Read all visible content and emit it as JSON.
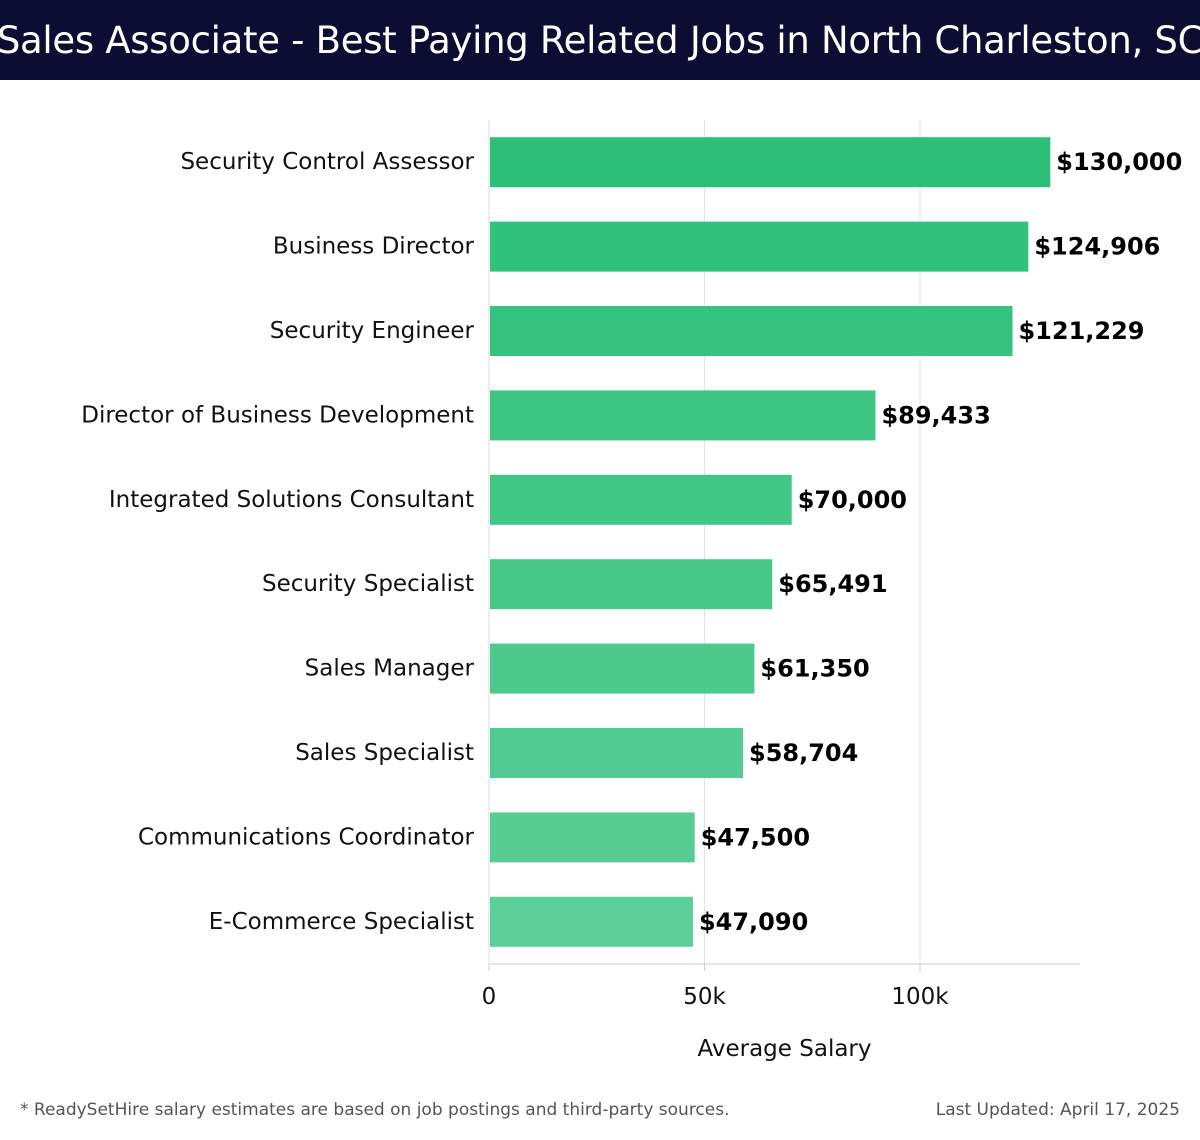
{
  "header": {
    "title": "Sales Associate - Best Paying Related Jobs in North Charleston, SC"
  },
  "footer": {
    "note": "* ReadySetHire salary estimates are based on job postings and third-party sources.",
    "updated": "Last Updated: April 17, 2025"
  },
  "colors": {
    "header_bg": "#0c0d33",
    "bar_top": "#2bbf77",
    "bar_bottom": "#5ccf98"
  },
  "chart_data": {
    "type": "bar",
    "orientation": "horizontal",
    "categories": [
      "Security Control Assessor",
      "Business Director",
      "Security Engineer",
      "Director of Business Development",
      "Integrated Solutions Consultant",
      "Security Specialist",
      "Sales Manager",
      "Sales Specialist",
      "Communications Coordinator",
      "E-Commerce Specialist"
    ],
    "values": [
      130000,
      124906,
      121229,
      89433,
      70000,
      65491,
      61350,
      58704,
      47500,
      47090
    ],
    "value_labels": [
      "$130,000",
      "$124,906",
      "$121,229",
      "$89,433",
      "$70,000",
      "$65,491",
      "$61,350",
      "$58,704",
      "$47,500",
      "$47,090"
    ],
    "xlabel": "Average Salary",
    "ylabel": "",
    "xlim": [
      0,
      137000
    ],
    "xticks": [
      0,
      50000,
      100000
    ],
    "xtick_labels": [
      "0",
      "50k",
      "100k"
    ],
    "grid": "vertical",
    "legend": "none"
  }
}
